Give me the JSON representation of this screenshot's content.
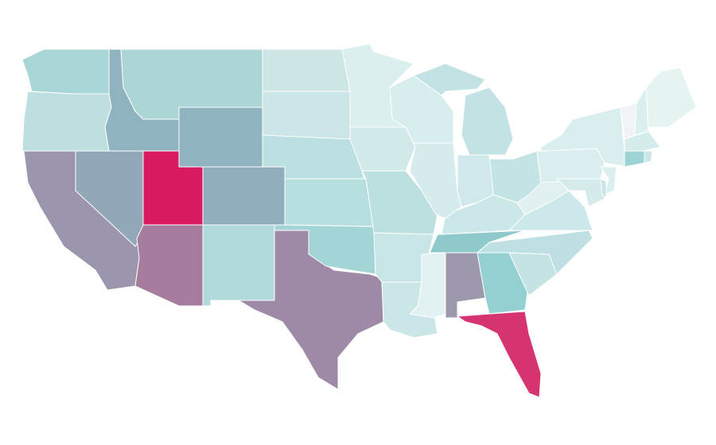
{
  "map": {
    "regions": [
      {
        "color": "#a8d5d6"
      },
      {
        "color": "#bddfe0"
      },
      {
        "color": "#8fb3c0"
      },
      {
        "color": "#acd6d6"
      },
      {
        "color": "#8fb3c0"
      },
      {
        "color": "#9d94ad"
      },
      {
        "color": "#90a8b7"
      },
      {
        "color": "#d81b60"
      },
      {
        "color": "#a67c9c"
      },
      {
        "color": "#90aebb"
      },
      {
        "color": "#b0d9dc"
      },
      {
        "color": "#9e89a6"
      },
      {
        "color": "#a3d4d6"
      },
      {
        "color": "#b7dfe0"
      },
      {
        "color": "#bce0e1"
      },
      {
        "color": "#cce5e6"
      },
      {
        "color": "#cce6e6"
      },
      {
        "color": "#dcefef"
      },
      {
        "color": "#d2e9ea"
      },
      {
        "color": "#bcdfe0"
      },
      {
        "color": "#c8e5e6"
      },
      {
        "color": "#cbe6e7"
      },
      {
        "color": "#e2f1f1"
      },
      {
        "color": "#9e98ac"
      },
      {
        "color": "#94cfd2"
      },
      {
        "color": "#d63371"
      },
      {
        "color": "#c6e3e4"
      },
      {
        "color": "#bee0e2"
      },
      {
        "color": "#8fc9cc"
      },
      {
        "color": "#cce7e8"
      },
      {
        "color": "#cde8e9"
      },
      {
        "color": "#e0f0f0"
      },
      {
        "color": "#c4e3e4"
      },
      {
        "color": "#cfe8e9"
      },
      {
        "color": "#d6ecec"
      },
      {
        "color": "#d8eded"
      },
      {
        "color": "#c2e2e3"
      },
      {
        "color": "#c2e2e3"
      },
      {
        "color": "#dbeeef"
      },
      {
        "color": "#dbeeef"
      },
      {
        "color": "#f0f4f5"
      },
      {
        "color": "#dcefef"
      },
      {
        "color": "#e5f3f3"
      },
      {
        "color": "#d5ebec"
      },
      {
        "color": "#9ed3d5"
      },
      {
        "color": "#cbe6e7"
      },
      {
        "color": "#dcefef"
      },
      {
        "color": "#d4eaeb"
      },
      {
        "color": "#c8e6e7"
      }
    ]
  }
}
